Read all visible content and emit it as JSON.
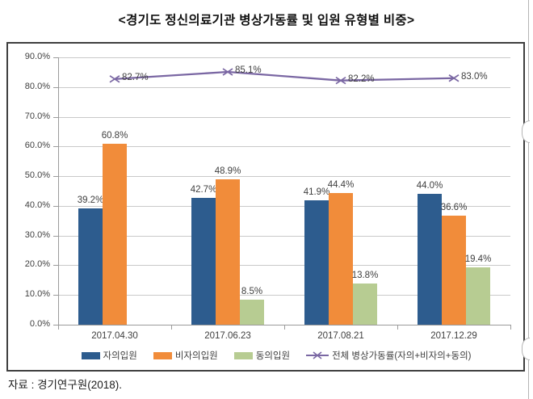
{
  "title": "<경기도 정신의료기관 병상가동률 및 입원 유형별 비중>",
  "source": "자료 : 경기연구원(2018).",
  "chart_data": {
    "type": "bar",
    "subtype": "grouped bars with overlay line",
    "categories": [
      "2017.04.30",
      "2017.06.23",
      "2017.08.21",
      "2017.12.29"
    ],
    "series": [
      {
        "name": "자의입원",
        "type": "bar",
        "color": "#2d5c8e",
        "values": [
          39.2,
          42.7,
          41.9,
          44.0
        ],
        "labels": [
          "39.2%",
          "42.7%",
          "41.9%",
          "44.0%"
        ]
      },
      {
        "name": "비자의입원",
        "type": "bar",
        "color": "#f18c3a",
        "values": [
          60.8,
          48.9,
          44.4,
          36.6
        ],
        "labels": [
          "60.8%",
          "48.9%",
          "44.4%",
          "36.6%"
        ]
      },
      {
        "name": "동의입원",
        "type": "bar",
        "color": "#b7cc92",
        "values": [
          0,
          8.5,
          13.8,
          19.4
        ],
        "labels": [
          "",
          "8.5%",
          "13.8%",
          "19.4%"
        ]
      },
      {
        "name": "전체 병상가동률(자의+비자의+동의)",
        "type": "line",
        "color": "#7a67a3",
        "values": [
          82.7,
          85.1,
          82.2,
          83.0
        ],
        "labels": [
          "82.7%",
          "85.1%",
          "82.2%",
          "83.0%"
        ]
      }
    ],
    "ylim": [
      0,
      90
    ],
    "ytick_step": 10,
    "yticks": [
      "0.0%",
      "10.0%",
      "20.0%",
      "30.0%",
      "40.0%",
      "50.0%",
      "60.0%",
      "70.0%",
      "80.0%",
      "90.0%"
    ],
    "grid": true,
    "legend_position": "bottom"
  }
}
